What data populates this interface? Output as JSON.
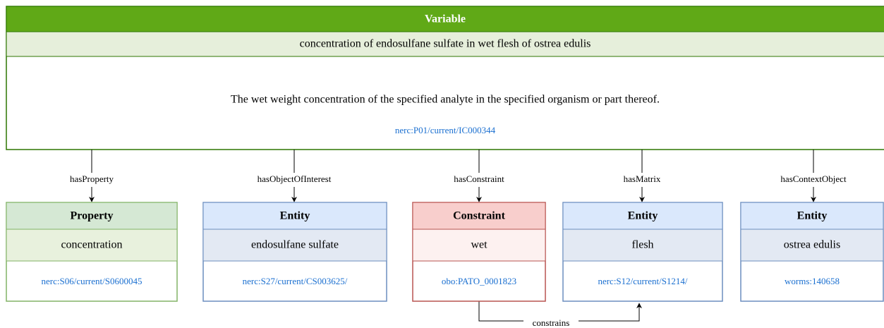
{
  "variable": {
    "header": "Variable",
    "label": "concentration of endosulfane sulfate in wet flesh of ostrea edulis",
    "description": "The wet weight concentration of the specified analyte in the specified organism or part thereof.",
    "uri": "nerc:P01/current/IC000344"
  },
  "nodes": [
    {
      "relation": "hasProperty",
      "header": "Property",
      "label": "concentration",
      "uri": "nerc:S06/current/S0600045"
    },
    {
      "relation": "hasObjectOfInterest",
      "header": "Entity",
      "label": "endosulfane sulfate",
      "uri": "nerc:S27/current/CS003625/"
    },
    {
      "relation": "hasConstraint",
      "header": "Constraint",
      "label": "wet",
      "uri": "obo:PATO_0001823"
    },
    {
      "relation": "hasMatrix",
      "header": "Entity",
      "label": "flesh",
      "uri": "nerc:S12/current/S1214/"
    },
    {
      "relation": "hasContextObject",
      "header": "Entity",
      "label": "ostrea edulis",
      "uri": "worms:140658"
    }
  ],
  "constraint_edge": "constrains"
}
